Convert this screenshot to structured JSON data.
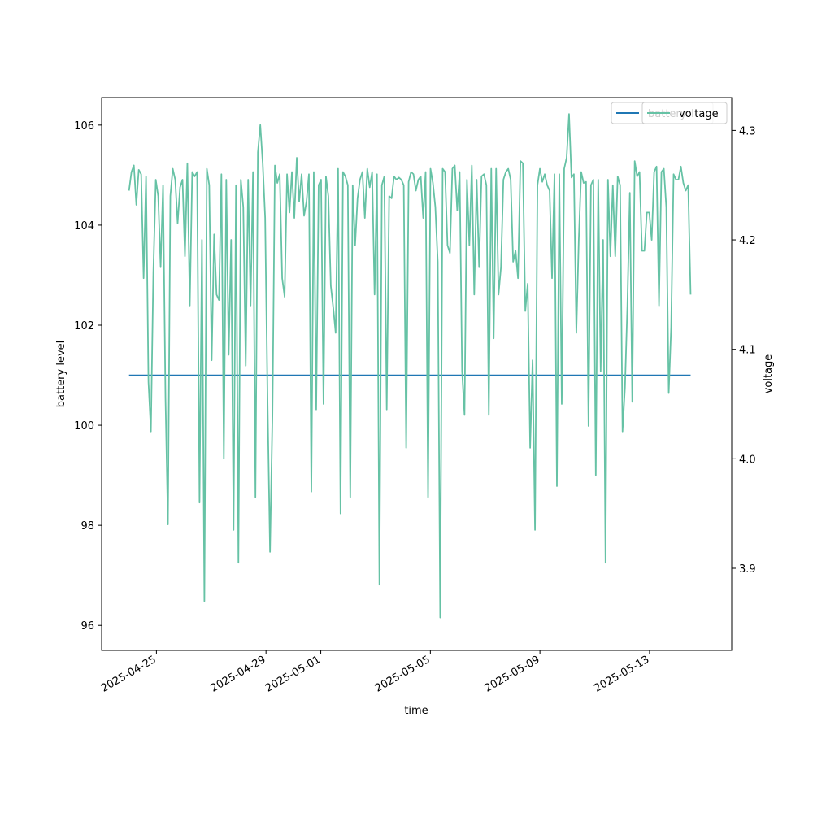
{
  "chart_data": {
    "type": "line",
    "xlabel": "time",
    "ylabel": "battery level",
    "y2label": "voltage",
    "xlim": [
      "2025-04-23T00:00",
      "2025-05-16T00:00"
    ],
    "ylim": [
      95.5,
      106.55
    ],
    "y2lim": [
      3.825,
      4.33
    ],
    "x_ticks": [
      "2025-04-25",
      "2025-04-29",
      "2025-05-01",
      "2025-05-05",
      "2025-05-09",
      "2025-05-13"
    ],
    "y_ticks": [
      96,
      98,
      100,
      102,
      104,
      106
    ],
    "y2_ticks": [
      3.9,
      4.0,
      4.1,
      4.2,
      4.3
    ],
    "grid": false,
    "legend": {
      "placement": "upper right",
      "entries": [
        "battery",
        "voltage"
      ]
    },
    "series": [
      {
        "name": "battery",
        "axis": "left",
        "color": "#1f77b4",
        "x": [
          "2025-04-24T00:00",
          "2025-05-14T12:00"
        ],
        "values": [
          101.0,
          101.0
        ]
      },
      {
        "name": "voltage",
        "axis": "right",
        "color": "#66c2a5",
        "start": "2025-04-24T00:00",
        "end": "2025-05-14T12:00",
        "values": [
          4.245,
          4.262,
          4.268,
          4.232,
          4.264,
          4.26,
          4.165,
          4.258,
          4.07,
          4.025,
          4.17,
          4.255,
          4.24,
          4.175,
          4.25,
          4.055,
          3.94,
          4.24,
          4.265,
          4.255,
          4.215,
          4.248,
          4.255,
          4.185,
          4.27,
          4.14,
          4.262,
          4.258,
          4.262,
          3.96,
          4.2,
          3.87,
          4.265,
          4.25,
          4.09,
          4.205,
          4.15,
          4.145,
          4.26,
          4.0,
          4.255,
          4.095,
          4.2,
          3.935,
          4.25,
          3.905,
          4.255,
          4.23,
          4.085,
          4.255,
          4.14,
          4.262,
          3.965,
          4.28,
          4.305,
          4.27,
          4.22,
          4.05,
          3.915,
          4.04,
          4.268,
          4.252,
          4.26,
          4.165,
          4.148,
          4.26,
          4.225,
          4.262,
          4.22,
          4.275,
          4.235,
          4.26,
          4.222,
          4.235,
          4.26,
          3.97,
          4.262,
          4.045,
          4.25,
          4.255,
          4.05,
          4.258,
          4.24,
          4.158,
          4.138,
          4.115,
          4.265,
          3.95,
          4.262,
          4.258,
          4.25,
          3.965,
          4.25,
          4.195,
          4.238,
          4.255,
          4.262,
          4.22,
          4.265,
          4.248,
          4.262,
          4.15,
          4.26,
          3.885,
          4.25,
          4.258,
          4.045,
          4.24,
          4.238,
          4.258,
          4.255,
          4.257,
          4.255,
          4.25,
          4.01,
          4.253,
          4.262,
          4.26,
          4.245,
          4.255,
          4.258,
          4.22,
          4.262,
          3.965,
          4.265,
          4.252,
          4.23,
          4.18,
          3.855,
          4.265,
          4.262,
          4.195,
          4.188,
          4.265,
          4.268,
          4.227,
          4.262,
          4.08,
          4.04,
          4.255,
          4.195,
          4.268,
          4.15,
          4.255,
          4.175,
          4.258,
          4.26,
          4.25,
          4.04,
          4.265,
          4.11,
          4.265,
          4.15,
          4.175,
          4.255,
          4.262,
          4.265,
          4.255,
          4.18,
          4.19,
          4.165,
          4.272,
          4.27,
          4.135,
          4.16,
          4.01,
          4.09,
          3.935,
          4.25,
          4.265,
          4.253,
          4.26,
          4.25,
          4.245,
          4.165,
          4.26,
          3.975,
          4.26,
          4.05,
          4.265,
          4.275,
          4.315,
          4.257,
          4.26,
          4.115,
          4.2,
          4.262,
          4.252,
          4.253,
          4.03,
          4.25,
          4.255,
          3.985,
          4.255,
          4.08,
          4.2,
          3.905,
          4.255,
          4.185,
          4.25,
          4.185,
          4.258,
          4.25,
          4.025,
          4.065,
          4.14,
          4.243,
          4.052,
          4.272,
          4.258,
          4.262,
          4.19,
          4.19,
          4.225,
          4.225,
          4.2,
          4.262,
          4.267,
          4.14,
          4.262,
          4.265,
          4.23,
          4.06,
          4.12,
          4.26,
          4.255,
          4.255,
          4.267,
          4.252,
          4.245,
          4.25,
          4.15
        ]
      }
    ]
  }
}
